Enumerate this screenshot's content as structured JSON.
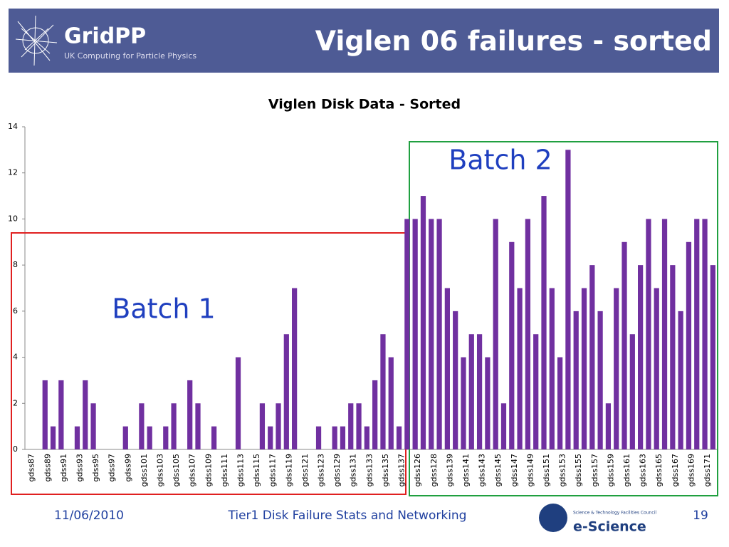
{
  "slide": {
    "logo": "GridPP",
    "logo_subtitle": "UK Computing for Particle Physics",
    "title": "Viglen 06 failures - sorted",
    "footer_date": "11/06/2010",
    "footer_text": "Tier1 Disk Failure Stats and Networking",
    "page_number": "19",
    "footer_logo_line": "Science & Technology Facilities Council",
    "footer_logo": "e-Science"
  },
  "chart_data": {
    "type": "bar",
    "title": "Viglen Disk Data - Sorted",
    "color": "#7030a0",
    "categories": [
      "gdss87",
      null,
      "gdss89",
      null,
      "gdss91",
      null,
      "gdss93",
      null,
      "gdss95",
      null,
      "gdss97",
      null,
      "gdss99",
      null,
      "gdss101",
      null,
      "gdss103",
      null,
      "gdss105",
      null,
      "gdss107",
      null,
      "gdss109",
      null,
      "gdss111",
      null,
      "gdss113",
      null,
      "gdss115",
      null,
      "gdss117",
      null,
      "gdss119",
      null,
      "gdss121",
      null,
      "gdss123",
      null,
      "gdss129",
      null,
      "gdss131",
      null,
      "gdss133",
      null,
      "gdss135",
      null,
      "gdss137",
      null,
      "gdss126",
      null,
      "gdss128",
      null,
      "gdss139",
      null,
      "gdss141",
      null,
      "gdss143",
      null,
      "gdss145",
      null,
      "gdss147",
      null,
      "gdss149",
      null,
      "gdss151",
      null,
      "gdss153",
      null,
      "gdss155",
      null,
      "gdss157",
      null,
      "gdss159",
      null,
      "gdss161",
      null,
      "gdss163",
      null,
      "gdss165",
      null,
      "gdss167",
      null,
      "gdss169",
      null,
      "gdss171",
      null
    ],
    "values": [
      0,
      0,
      3,
      1,
      3,
      0,
      1,
      3,
      2,
      0,
      0,
      0,
      1,
      0,
      2,
      1,
      0,
      1,
      2,
      0,
      3,
      2,
      0,
      1,
      0,
      0,
      4,
      0,
      0,
      2,
      1,
      2,
      5,
      7,
      0,
      0,
      1,
      0,
      1,
      1,
      2,
      2,
      1,
      3,
      5,
      4,
      1,
      10,
      10,
      11,
      10,
      10,
      7,
      6,
      4,
      5,
      5,
      4,
      10,
      2,
      9,
      7,
      10,
      5,
      11,
      7,
      4,
      13,
      6,
      7,
      8,
      6,
      2,
      7,
      9,
      5,
      8,
      10,
      7,
      10,
      8,
      6,
      9,
      10,
      10,
      8
    ],
    "ylim": [
      0,
      14
    ],
    "yticks": [
      0,
      2,
      4,
      6,
      8,
      10,
      12,
      14
    ],
    "grid": false,
    "annotations": [
      "Batch 1",
      "Batch 2"
    ]
  }
}
